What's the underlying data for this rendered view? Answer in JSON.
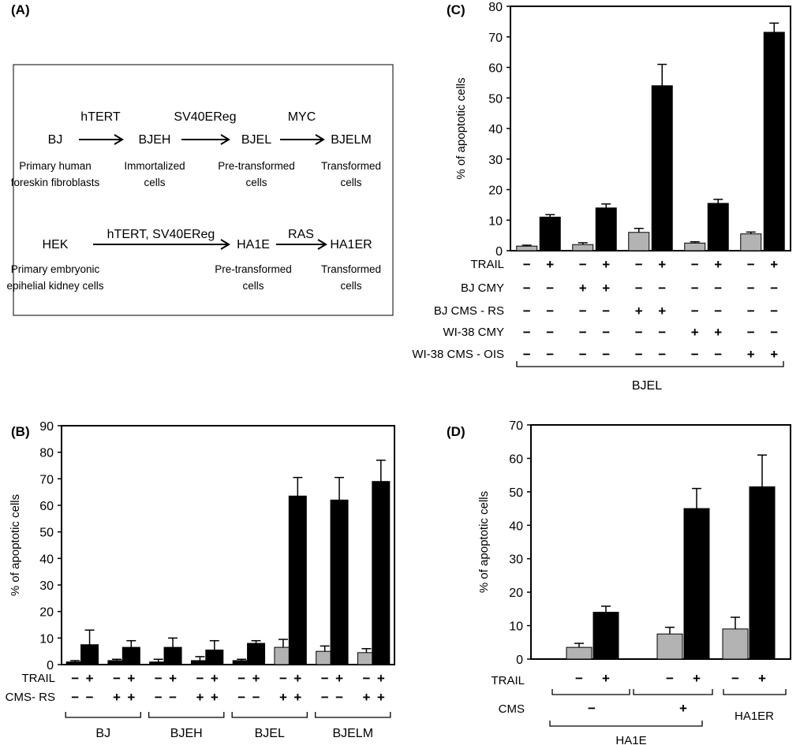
{
  "panel_a": {
    "label": "(A)",
    "row1": {
      "nodes": [
        "BJ",
        "BJEH",
        "BJEL",
        "BJELM"
      ],
      "arrows": [
        "hTERT",
        "SV40EReg",
        "MYC"
      ],
      "desc": [
        [
          "Primary human",
          "foreskin fibroblasts"
        ],
        [
          "Immortalized",
          "cells"
        ],
        [
          "Pre-transformed",
          "cells"
        ],
        [
          "Transformed",
          "cells"
        ]
      ]
    },
    "row2": {
      "nodes": [
        "HEK",
        "HA1E",
        "HA1ER"
      ],
      "arrows": [
        "hTERT, SV40EReg",
        "RAS"
      ],
      "desc": [
        [
          "Primary embryonic",
          "epihelial kidney cells"
        ],
        [
          "Pre-transformed",
          "cells"
        ],
        [
          "Transformed",
          "cells"
        ]
      ]
    }
  },
  "chart_data": [
    {
      "panel": "(B)",
      "type": "bar",
      "ylabel": "% of apoptotic cells",
      "ylim": [
        0,
        90
      ],
      "yticks": [
        0,
        10,
        20,
        30,
        40,
        50,
        60,
        70,
        80,
        90
      ],
      "values": [
        1,
        7.5,
        1.5,
        6.5,
        1,
        6.5,
        1.5,
        5.5,
        1.5,
        8,
        6.5,
        63.5,
        5,
        62,
        4.5,
        69
      ],
      "errors": [
        0.5,
        5.5,
        0.5,
        2.5,
        1,
        3.5,
        1.5,
        3.5,
        0.5,
        1,
        3,
        7,
        2,
        8.5,
        1.5,
        8
      ],
      "fills": [
        "black",
        "black",
        "black",
        "black",
        "black",
        "black",
        "black",
        "black",
        "black",
        "black",
        "gray",
        "black",
        "gray",
        "black",
        "gray",
        "black"
      ],
      "conditions": [
        {
          "label": "TRAIL",
          "signs": [
            "−",
            "+",
            "−",
            "+",
            "−",
            "+",
            "−",
            "+",
            "−",
            "+",
            "−",
            "+",
            "−",
            "+",
            "−",
            "+"
          ]
        },
        {
          "label": "CMS- RS",
          "signs": [
            "−",
            "−",
            "+",
            "+",
            "−",
            "−",
            "+",
            "+",
            "−",
            "−",
            "+",
            "+",
            "−",
            "−",
            "+",
            "+"
          ]
        }
      ],
      "groups": [
        "BJ",
        "BJEH",
        "BJEL",
        "BJELM"
      ]
    },
    {
      "panel": "(C)",
      "type": "bar",
      "ylabel": "% of apoptotic cells",
      "ylim": [
        0,
        80
      ],
      "yticks": [
        0,
        10,
        20,
        30,
        40,
        50,
        60,
        70,
        80
      ],
      "values": [
        1.5,
        11,
        2,
        14,
        6,
        54,
        2.5,
        15.5,
        5.5,
        71.5
      ],
      "errors": [
        0.3,
        0.8,
        0.6,
        1.3,
        1.3,
        7,
        0.4,
        1.3,
        0.6,
        3
      ],
      "fills": [
        "gray",
        "black",
        "gray",
        "black",
        "gray",
        "black",
        "gray",
        "black",
        "gray",
        "black"
      ],
      "conditions": [
        {
          "label": "TRAIL",
          "signs": [
            "−",
            "+",
            "−",
            "+",
            "−",
            "+",
            "−",
            "+",
            "−",
            "+"
          ]
        },
        {
          "label": "BJ CMY",
          "signs": [
            "−",
            "−",
            "+",
            "+",
            "−",
            "−",
            "−",
            "−",
            "−",
            "−"
          ]
        },
        {
          "label": "BJ CMS - RS",
          "signs": [
            "−",
            "−",
            "−",
            "−",
            "+",
            "+",
            "−",
            "−",
            "−",
            "−"
          ]
        },
        {
          "label": "WI-38 CMY",
          "signs": [
            "−",
            "−",
            "−",
            "−",
            "−",
            "−",
            "+",
            "+",
            "−",
            "−"
          ]
        },
        {
          "label": "WI-38 CMS - OIS",
          "signs": [
            "−",
            "−",
            "−",
            "−",
            "−",
            "−",
            "−",
            "−",
            "+",
            "+"
          ]
        }
      ],
      "groups": [
        "BJEL"
      ]
    },
    {
      "panel": "(D)",
      "type": "bar",
      "ylabel": "% of apoptotic cells",
      "ylim": [
        0,
        70
      ],
      "yticks": [
        0,
        10,
        20,
        30,
        40,
        50,
        60,
        70
      ],
      "values": [
        3.5,
        14,
        7.5,
        45,
        9,
        51.5
      ],
      "errors": [
        1.2,
        1.8,
        2,
        6,
        3.5,
        9.5
      ],
      "fills": [
        "gray",
        "black",
        "gray",
        "black",
        "gray",
        "black"
      ],
      "trail_label": "TRAIL",
      "trail_signs": [
        "−",
        "+",
        "−",
        "+",
        "−",
        "+"
      ],
      "cms_label": "CMS",
      "cms_signs": [
        "−",
        "+"
      ],
      "groups": [
        "HA1E",
        "HA1ER"
      ]
    }
  ]
}
